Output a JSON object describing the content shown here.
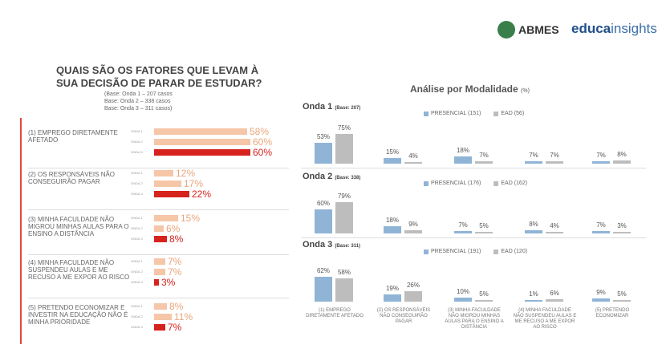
{
  "logos": {
    "abmes": "ABMES",
    "educa_bold": "educa",
    "educa_light": "insights"
  },
  "left": {
    "title": "QUAIS SÃO OS FATORES QUE LEVAM À SUA DECISÃO DE PARAR DE ESTUDAR?",
    "bases": [
      "(Base: Onda 1 – 207 casos",
      "Base: Onda 2 – 338 casos",
      "Base: Onda 3 – 311 casos)"
    ],
    "wave_tags": [
      "ONDA 1",
      "ONDA 2",
      "ONDA 3"
    ],
    "factors": [
      {
        "label": "(1) EMPREGO DIRETAMENTE AFETADO",
        "values": [
          "58%",
          "60%",
          "60%"
        ]
      },
      {
        "label": "(2) OS RESPONSÁVEIS NÃO CONSEGUIRÃO PAGAR",
        "values": [
          "12%",
          "17%",
          "22%"
        ]
      },
      {
        "label": "(3) MINHA FACULDADE NÃO MIGROU MINHAS AULAS PARA O ENSINO A DISTÂNCIA",
        "values": [
          "15%",
          "6%",
          "8%"
        ]
      },
      {
        "label": "(4) MINHA FACULDADE NÃO SUSPENDEU AULAS E ME RECUSO A ME EXPOR AO RISCO",
        "values": [
          "7%",
          "7%",
          "3%"
        ]
      },
      {
        "label": "(5) PRETENDO ECONOMIZAR E INVESTIR NA EDUCAÇÃO NÃO É MINHA PRIORIDADE",
        "values": [
          "8%",
          "11%",
          "7%"
        ]
      }
    ],
    "colors": {
      "onda1": "#f5c6a8",
      "onda2": "#f5c6a8",
      "onda3": "#d6231e",
      "text_light": "#e9a67c"
    }
  },
  "right": {
    "title": "Análise por Modalidade",
    "title_unit": "(%)",
    "waves": [
      {
        "name": "Onda 1",
        "base": "(Base: 207)",
        "legend_presencial": "PRESENCIAL (151)",
        "legend_ead": "EAD (56)",
        "presencial": [
          "53%",
          "15%",
          "18%",
          "7%",
          "7%"
        ],
        "ead": [
          "75%",
          "4%",
          "7%",
          "7%",
          "8%"
        ]
      },
      {
        "name": "Onda 2",
        "base": "(Base: 338)",
        "legend_presencial": "PRESENCIAL (176)",
        "legend_ead": "EAD (162)",
        "presencial": [
          "60%",
          "18%",
          "7%",
          "8%",
          "7%"
        ],
        "ead": [
          "79%",
          "9%",
          "5%",
          "4%",
          "3%"
        ]
      },
      {
        "name": "Onda 3",
        "base": "(Base: 311)",
        "legend_presencial": "PRESENCIAL (191)",
        "legend_ead": "EAD (120)",
        "presencial": [
          "62%",
          "19%",
          "10%",
          "1%",
          "9%"
        ],
        "ead": [
          "58%",
          "26%",
          "5%",
          "6%",
          "5%"
        ]
      }
    ],
    "categories": [
      "(1) EMPREGO DIRETAMENTE AFETADO",
      "(2) OS RESPONSÁVEIS NÃO CONSEGUIRÃO PAGAR",
      "(3) MINHA FACULDADE NÃO MIGROU MINHAS AULAS PARA O ENSINO A DISTÂNCIA",
      "(4) MINHA FACULDADE NÃO SUSPENDEU AULAS E ME RECUSO A ME EXPOR AO RISCO",
      "(5) PRETENDO ECONOMIZAR"
    ],
    "colors": {
      "presencial": "#8fb4d6",
      "ead": "#bdbdbd"
    }
  },
  "chart_data": [
    {
      "type": "bar",
      "title": "QUAIS SÃO OS FATORES QUE LEVAM À SUA DECISÃO DE PARAR DE ESTUDAR?",
      "categories": [
        "(1) EMPREGO DIRETAMENTE AFETADO",
        "(2) OS RESPONSÁVEIS NÃO CONSEGUIRÃO PAGAR",
        "(3) MINHA FACULDADE NÃO MIGROU MINHAS AULAS PARA O ENSINO A DISTÂNCIA",
        "(4) MINHA FACULDADE NÃO SUSPENDEU AULAS E ME RECUSO A ME EXPOR AO RISCO",
        "(5) PRETENDO ECONOMIZAR E INVESTIR NA EDUCAÇÃO NÃO É MINHA PRIORIDADE"
      ],
      "series": [
        {
          "name": "ONDA 1",
          "values": [
            58,
            12,
            15,
            7,
            8
          ]
        },
        {
          "name": "ONDA 2",
          "values": [
            60,
            17,
            6,
            7,
            11
          ]
        },
        {
          "name": "ONDA 3",
          "values": [
            60,
            22,
            8,
            3,
            7
          ]
        }
      ],
      "orientation": "horizontal"
    },
    {
      "type": "bar",
      "title": "Análise por Modalidade",
      "categories": [
        "(1) EMPREGO DIRETAMENTE AFETADO",
        "(2) OS RESPONSÁVEIS NÃO CONSEGUIRÃO PAGAR",
        "(3) MINHA FACULDADE NÃO MIGROU MINHAS AULAS PARA O ENSINO A DISTÂNCIA",
        "(4) MINHA FACULDADE NÃO SUSPENDEU AULAS E ME RECUSO A ME EXPOR AO RISCO",
        "(5) PRETENDO ECONOMIZAR"
      ],
      "panels": [
        {
          "name": "Onda 1",
          "series": [
            {
              "name": "PRESENCIAL (151)",
              "values": [
                53,
                15,
                18,
                7,
                7
              ]
            },
            {
              "name": "EAD (56)",
              "values": [
                75,
                4,
                7,
                7,
                8
              ]
            }
          ]
        },
        {
          "name": "Onda 2",
          "series": [
            {
              "name": "PRESENCIAL (176)",
              "values": [
                60,
                18,
                7,
                8,
                7
              ]
            },
            {
              "name": "EAD (162)",
              "values": [
                79,
                9,
                5,
                4,
                3
              ]
            }
          ]
        },
        {
          "name": "Onda 3",
          "series": [
            {
              "name": "PRESENCIAL (191)",
              "values": [
                62,
                19,
                10,
                1,
                9
              ]
            },
            {
              "name": "EAD (120)",
              "values": [
                58,
                26,
                5,
                6,
                5
              ]
            }
          ]
        }
      ]
    }
  ]
}
